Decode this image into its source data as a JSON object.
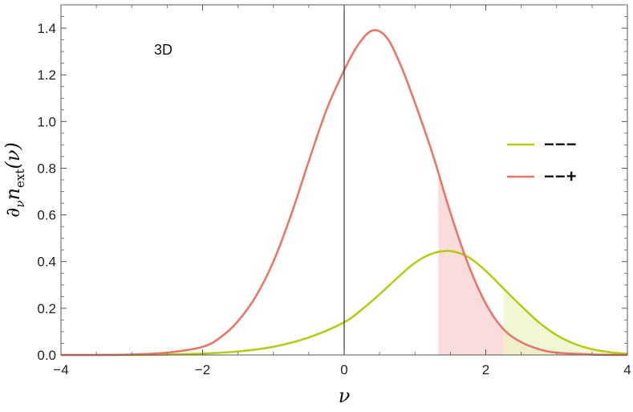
{
  "chart_data": {
    "type": "line",
    "annotation": "3D",
    "xlabel": "ν",
    "ylabel": "∂νnext(ν)",
    "ylabel_parts": {
      "main": "∂",
      "sub1": "ν",
      "n": "n",
      "sub2": "ext",
      "arg": "(ν)"
    },
    "xlim": [
      -4,
      4
    ],
    "ylim": [
      0,
      1.5
    ],
    "x_ticks": [
      -4,
      -2,
      0,
      2,
      4
    ],
    "x_tick_labels": [
      "−4",
      "−2",
      "0",
      "2",
      "4"
    ],
    "y_ticks": [
      0,
      0.2,
      0.4,
      0.6,
      0.8,
      1.0,
      1.2,
      1.4
    ],
    "y_tick_labels": [
      "0.0",
      "0.2",
      "0.4",
      "0.6",
      "0.8",
      "1.0",
      "1.2",
      "1.4"
    ],
    "grid": false,
    "legend_position": "right",
    "series": [
      {
        "name": "−−−",
        "color": "#b5cc18",
        "shade_from": 2.25,
        "shade_color": "#eef5c4",
        "x": [
          -4.0,
          -3.5,
          -3.0,
          -2.5,
          -2.0,
          -1.5,
          -1.0,
          -0.5,
          0.0,
          0.25,
          0.5,
          0.75,
          1.0,
          1.25,
          1.5,
          1.75,
          2.0,
          2.25,
          2.5,
          2.75,
          3.0,
          3.25,
          3.5,
          3.75,
          4.0
        ],
        "y": [
          0.0,
          0.0,
          0.0,
          0.002,
          0.006,
          0.015,
          0.035,
          0.075,
          0.14,
          0.195,
          0.26,
          0.33,
          0.395,
          0.435,
          0.445,
          0.42,
          0.36,
          0.285,
          0.21,
          0.14,
          0.085,
          0.048,
          0.025,
          0.012,
          0.005
        ]
      },
      {
        "name": "−−+",
        "color": "#e8776a",
        "shade_from": 1.33,
        "shade_color": "#f9dcdc",
        "x": [
          -4.0,
          -3.5,
          -3.0,
          -2.5,
          -2.0,
          -1.75,
          -1.5,
          -1.25,
          -1.0,
          -0.75,
          -0.5,
          -0.25,
          0.0,
          0.2,
          0.4,
          0.6,
          0.8,
          1.0,
          1.25,
          1.5,
          1.75,
          2.0,
          2.25,
          2.5,
          2.75,
          3.0,
          3.5,
          4.0
        ],
        "y": [
          0.0,
          0.0,
          0.002,
          0.01,
          0.035,
          0.075,
          0.145,
          0.25,
          0.4,
          0.6,
          0.83,
          1.05,
          1.22,
          1.33,
          1.39,
          1.36,
          1.24,
          1.08,
          0.86,
          0.61,
          0.39,
          0.22,
          0.11,
          0.055,
          0.025,
          0.01,
          0.002,
          0.0
        ]
      }
    ]
  }
}
